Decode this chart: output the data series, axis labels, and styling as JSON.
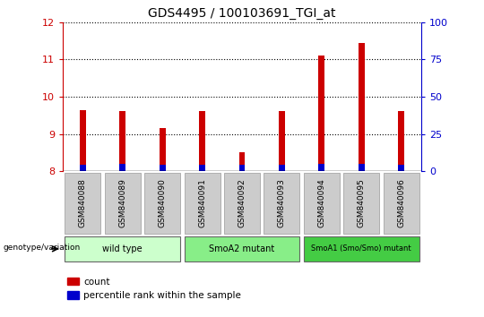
{
  "title": "GDS4495 / 100103691_TGI_at",
  "samples": [
    "GSM840088",
    "GSM840089",
    "GSM840090",
    "GSM840091",
    "GSM840092",
    "GSM840093",
    "GSM840094",
    "GSM840095",
    "GSM840096"
  ],
  "count_values": [
    9.65,
    9.62,
    9.15,
    9.62,
    8.52,
    9.62,
    11.1,
    11.45,
    9.62
  ],
  "percentile_values": [
    8.18,
    8.2,
    8.18,
    8.18,
    8.18,
    8.18,
    8.2,
    8.2,
    8.18
  ],
  "bar_bottom": 8.0,
  "ylim_left": [
    8,
    12
  ],
  "ylim_right": [
    0,
    100
  ],
  "yticks_left": [
    8,
    9,
    10,
    11,
    12
  ],
  "yticks_right": [
    0,
    25,
    50,
    75,
    100
  ],
  "count_color": "#cc0000",
  "percentile_color": "#0000cc",
  "groups": [
    {
      "label": "wild type",
      "start": 0,
      "end": 3,
      "color": "#ccffcc"
    },
    {
      "label": "SmoA2 mutant",
      "start": 3,
      "end": 6,
      "color": "#88ee88"
    },
    {
      "label": "SmoA1 (Smo/Smo) mutant",
      "start": 6,
      "end": 9,
      "color": "#44cc44"
    }
  ],
  "bar_width": 0.15,
  "legend_count_label": "count",
  "legend_percentile_label": "percentile rank within the sample",
  "genotype_label": "genotype/variation",
  "bg_color": "#ffffff",
  "sample_box_color": "#cccccc",
  "group_border_color": "#666666"
}
